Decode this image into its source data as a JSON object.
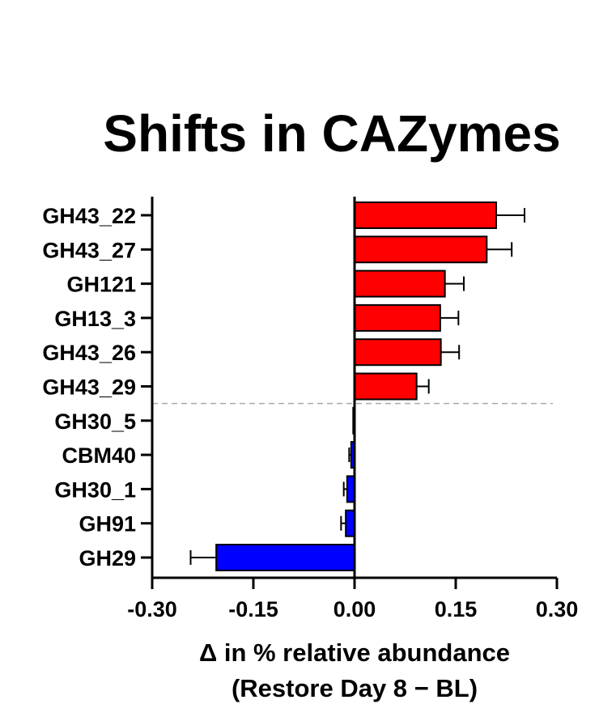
{
  "chart_data": {
    "type": "bar",
    "orientation": "horizontal",
    "title": "Shifts in CAZymes",
    "xlabel_line1": "Δ in % relative abundance",
    "xlabel_line2": "(Restore Day 8 − BL)",
    "ylabel": "",
    "xlim": [
      -0.3,
      0.3
    ],
    "xticks": [
      "-0.30",
      "-0.15",
      "0.00",
      "0.15",
      "0.30"
    ],
    "xtick_values": [
      -0.3,
      -0.15,
      0.0,
      0.15,
      0.3
    ],
    "categories": [
      "GH43_22",
      "GH43_27",
      "GH121",
      "GH13_3",
      "GH43_26",
      "GH43_29",
      "GH30_5",
      "CBM40",
      "GH30_1",
      "GH91",
      "GH29"
    ],
    "values": [
      0.21,
      0.196,
      0.134,
      0.127,
      0.128,
      0.092,
      -0.002,
      -0.005,
      -0.011,
      -0.013,
      -0.205
    ],
    "errors": [
      0.042,
      0.037,
      0.028,
      0.027,
      0.027,
      0.018,
      0.0,
      0.003,
      0.005,
      0.007,
      0.038
    ],
    "colors": {
      "positive": "#ff0000",
      "negative": "#0000ff",
      "axis": "#000000",
      "divider": "#aaaaaa"
    },
    "divider_after_index": 5,
    "grid": false,
    "legend": "none"
  }
}
